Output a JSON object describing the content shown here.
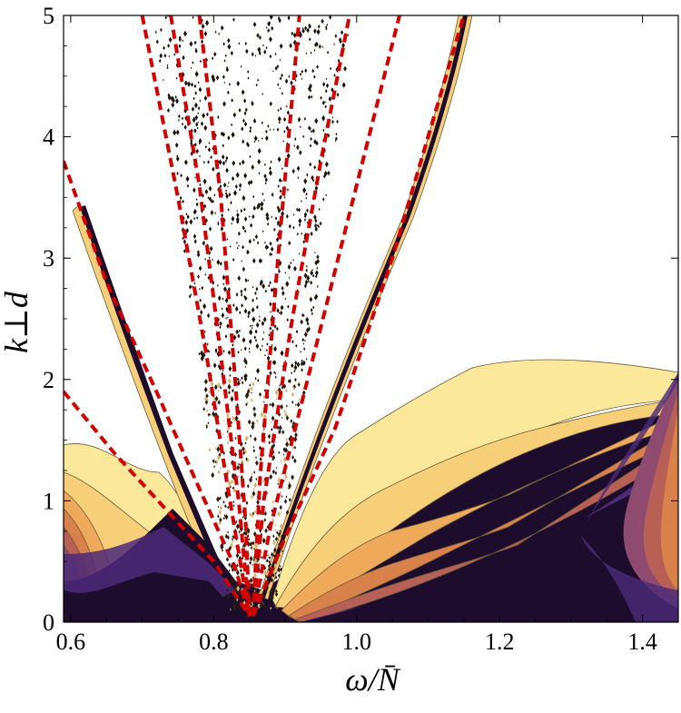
{
  "chart_data": {
    "type": "heatmap",
    "title": "",
    "xlabel": "ω/N̄",
    "ylabel": "k⊥d",
    "xlim": [
      0.59,
      1.45
    ],
    "ylim": [
      0,
      5
    ],
    "x_ticks": [
      "0.6",
      "0.8",
      "1.0",
      "1.2",
      "1.4"
    ],
    "x_tick_values": [
      0.6,
      0.8,
      1.0,
      1.2,
      1.4
    ],
    "y_ticks": [
      "0",
      "1",
      "2",
      "3",
      "4",
      "5"
    ],
    "y_tick_values": [
      0,
      1,
      2,
      3,
      4,
      5
    ],
    "grid": false,
    "legend": "none",
    "colors": {
      "contour_levels": [
        "#1d0c2b",
        "#4b2a7a",
        "#6a3b7e",
        "#8e4a6f",
        "#b85f56",
        "#d8814a",
        "#eea95a",
        "#f6cf78",
        "#fbe89a"
      ],
      "dispersion_curves": "#d40000"
    },
    "series": [
      {
        "type": "contour_filled",
        "boundary_curves": {
          "left_ridge_outer": [
            [
              0.59,
              1.48
            ],
            [
              0.62,
              1.45
            ],
            [
              0.66,
              1.35
            ],
            [
              0.71,
              1.22
            ],
            [
              0.76,
              1.05
            ],
            [
              0.8,
              0.65
            ],
            [
              0.83,
              0.3
            ],
            [
              0.85,
              0.1
            ]
          ],
          "right_ridge_outer": [
            [
              0.86,
              0.1
            ],
            [
              0.9,
              0.45
            ],
            [
              0.95,
              0.85
            ],
            [
              1.0,
              1.15
            ],
            [
              1.05,
              1.4
            ],
            [
              1.1,
              1.6
            ],
            [
              1.2,
              1.75
            ],
            [
              1.3,
              1.9
            ],
            [
              1.4,
              2.07
            ],
            [
              1.45,
              2.1
            ]
          ]
        }
      },
      {
        "type": "line",
        "style": "dashed",
        "points_left": [
          [
            [
              0.59,
              3.8
            ],
            [
              0.65,
              2.8
            ],
            [
              0.72,
              1.9
            ],
            [
              0.78,
              1.1
            ],
            [
              0.83,
              0.45
            ],
            [
              0.85,
              0.05
            ]
          ],
          [
            [
              0.59,
              1.9
            ],
            [
              0.66,
              1.4
            ],
            [
              0.73,
              0.95
            ],
            [
              0.8,
              0.5
            ],
            [
              0.85,
              0.05
            ]
          ],
          [
            [
              0.7,
              5.0
            ],
            [
              0.75,
              3.5
            ],
            [
              0.79,
              2.2
            ],
            [
              0.82,
              1.1
            ],
            [
              0.85,
              0.05
            ]
          ],
          [
            [
              0.74,
              5.0
            ],
            [
              0.78,
              3.6
            ],
            [
              0.81,
              2.2
            ],
            [
              0.835,
              1.0
            ],
            [
              0.85,
              0.05
            ]
          ],
          [
            [
              0.78,
              5.0
            ],
            [
              0.81,
              3.5
            ],
            [
              0.83,
              2.0
            ],
            [
              0.845,
              0.8
            ],
            [
              0.85,
              0.05
            ]
          ]
        ],
        "points_right": [
          [
            [
              0.855,
              0.05
            ],
            [
              0.9,
              0.7
            ],
            [
              0.97,
              1.6
            ],
            [
              1.05,
              3.0
            ],
            [
              1.1,
              4.0
            ],
            [
              1.15,
              5.0
            ]
          ],
          [
            [
              0.855,
              0.05
            ],
            [
              0.88,
              0.8
            ],
            [
              0.94,
              2.2
            ],
            [
              1.0,
              3.6
            ],
            [
              1.06,
              5.0
            ]
          ],
          [
            [
              0.855,
              0.05
            ],
            [
              0.87,
              1.0
            ],
            [
              0.91,
              2.5
            ],
            [
              0.95,
              3.8
            ],
            [
              0.99,
              5.0
            ]
          ],
          [
            [
              0.855,
              0.05
            ],
            [
              0.865,
              1.2
            ],
            [
              0.89,
              3.0
            ],
            [
              0.92,
              5.0
            ]
          ]
        ]
      }
    ]
  }
}
